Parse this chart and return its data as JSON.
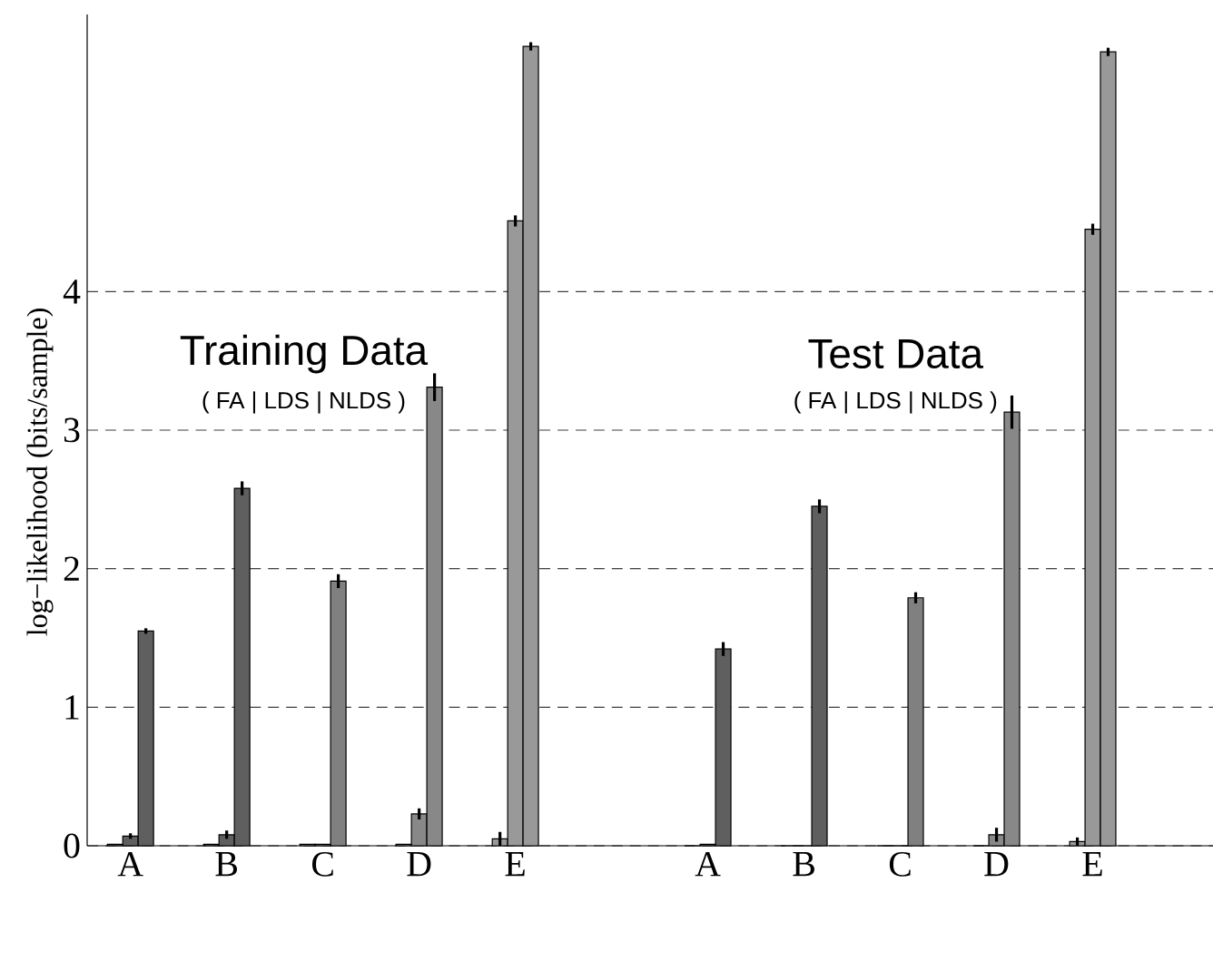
{
  "chart_data": {
    "type": "bar",
    "ylabel": "log−likelihood (bits/sample)",
    "categories": [
      "A",
      "B",
      "C",
      "D",
      "E",
      null,
      "A",
      "B",
      "C",
      "D",
      "E"
    ],
    "series": [
      {
        "colors": [
          "#5f5f5f",
          "#5f5f5f",
          "#808080",
          "#888888",
          "#999999",
          null,
          "#5f5f5f",
          "#5f5f5f",
          "#808080",
          "#888888",
          "#999999"
        ],
        "values": [
          0.01,
          0.01,
          0.01,
          0.01,
          0.05,
          null,
          0,
          0,
          0,
          0,
          0.03
        ],
        "errors": [
          null,
          null,
          null,
          null,
          0.05,
          null,
          null,
          null,
          null,
          null,
          0.03
        ]
      },
      {
        "colors": [
          "#5f5f5f",
          "#5f5f5f",
          "#808080",
          "#888888",
          "#999999",
          null,
          "#5f5f5f",
          "#5f5f5f",
          "#808080",
          "#888888",
          "#999999"
        ],
        "values": [
          0.07,
          0.08,
          0.01,
          0.23,
          4.51,
          null,
          0.01,
          0,
          0,
          0.08,
          4.45
        ],
        "errors": [
          0.02,
          0.03,
          null,
          0.04,
          0.04,
          null,
          null,
          null,
          null,
          0.05,
          0.04
        ]
      },
      {
        "colors": [
          "#5f5f5f",
          "#5f5f5f",
          "#808080",
          "#888888",
          "#999999",
          null,
          "#5f5f5f",
          "#5f5f5f",
          "#808080",
          "#888888",
          "#999999"
        ],
        "values": [
          1.55,
          2.58,
          1.91,
          3.31,
          5.77,
          null,
          1.42,
          2.45,
          1.79,
          3.13,
          5.73
        ],
        "errors": [
          0.02,
          0.05,
          0.05,
          0.1,
          0.03,
          null,
          0.05,
          0.05,
          0.04,
          0.12,
          0.03
        ]
      }
    ],
    "ylim": [
      0,
      6
    ],
    "yticks": [
      0,
      1,
      2,
      3,
      4
    ],
    "grid": "y",
    "annotations": [
      "Training Data",
      "( FA | LDS | NLDS )",
      "Test Data",
      "( FA | LDS | NLDS )"
    ]
  }
}
